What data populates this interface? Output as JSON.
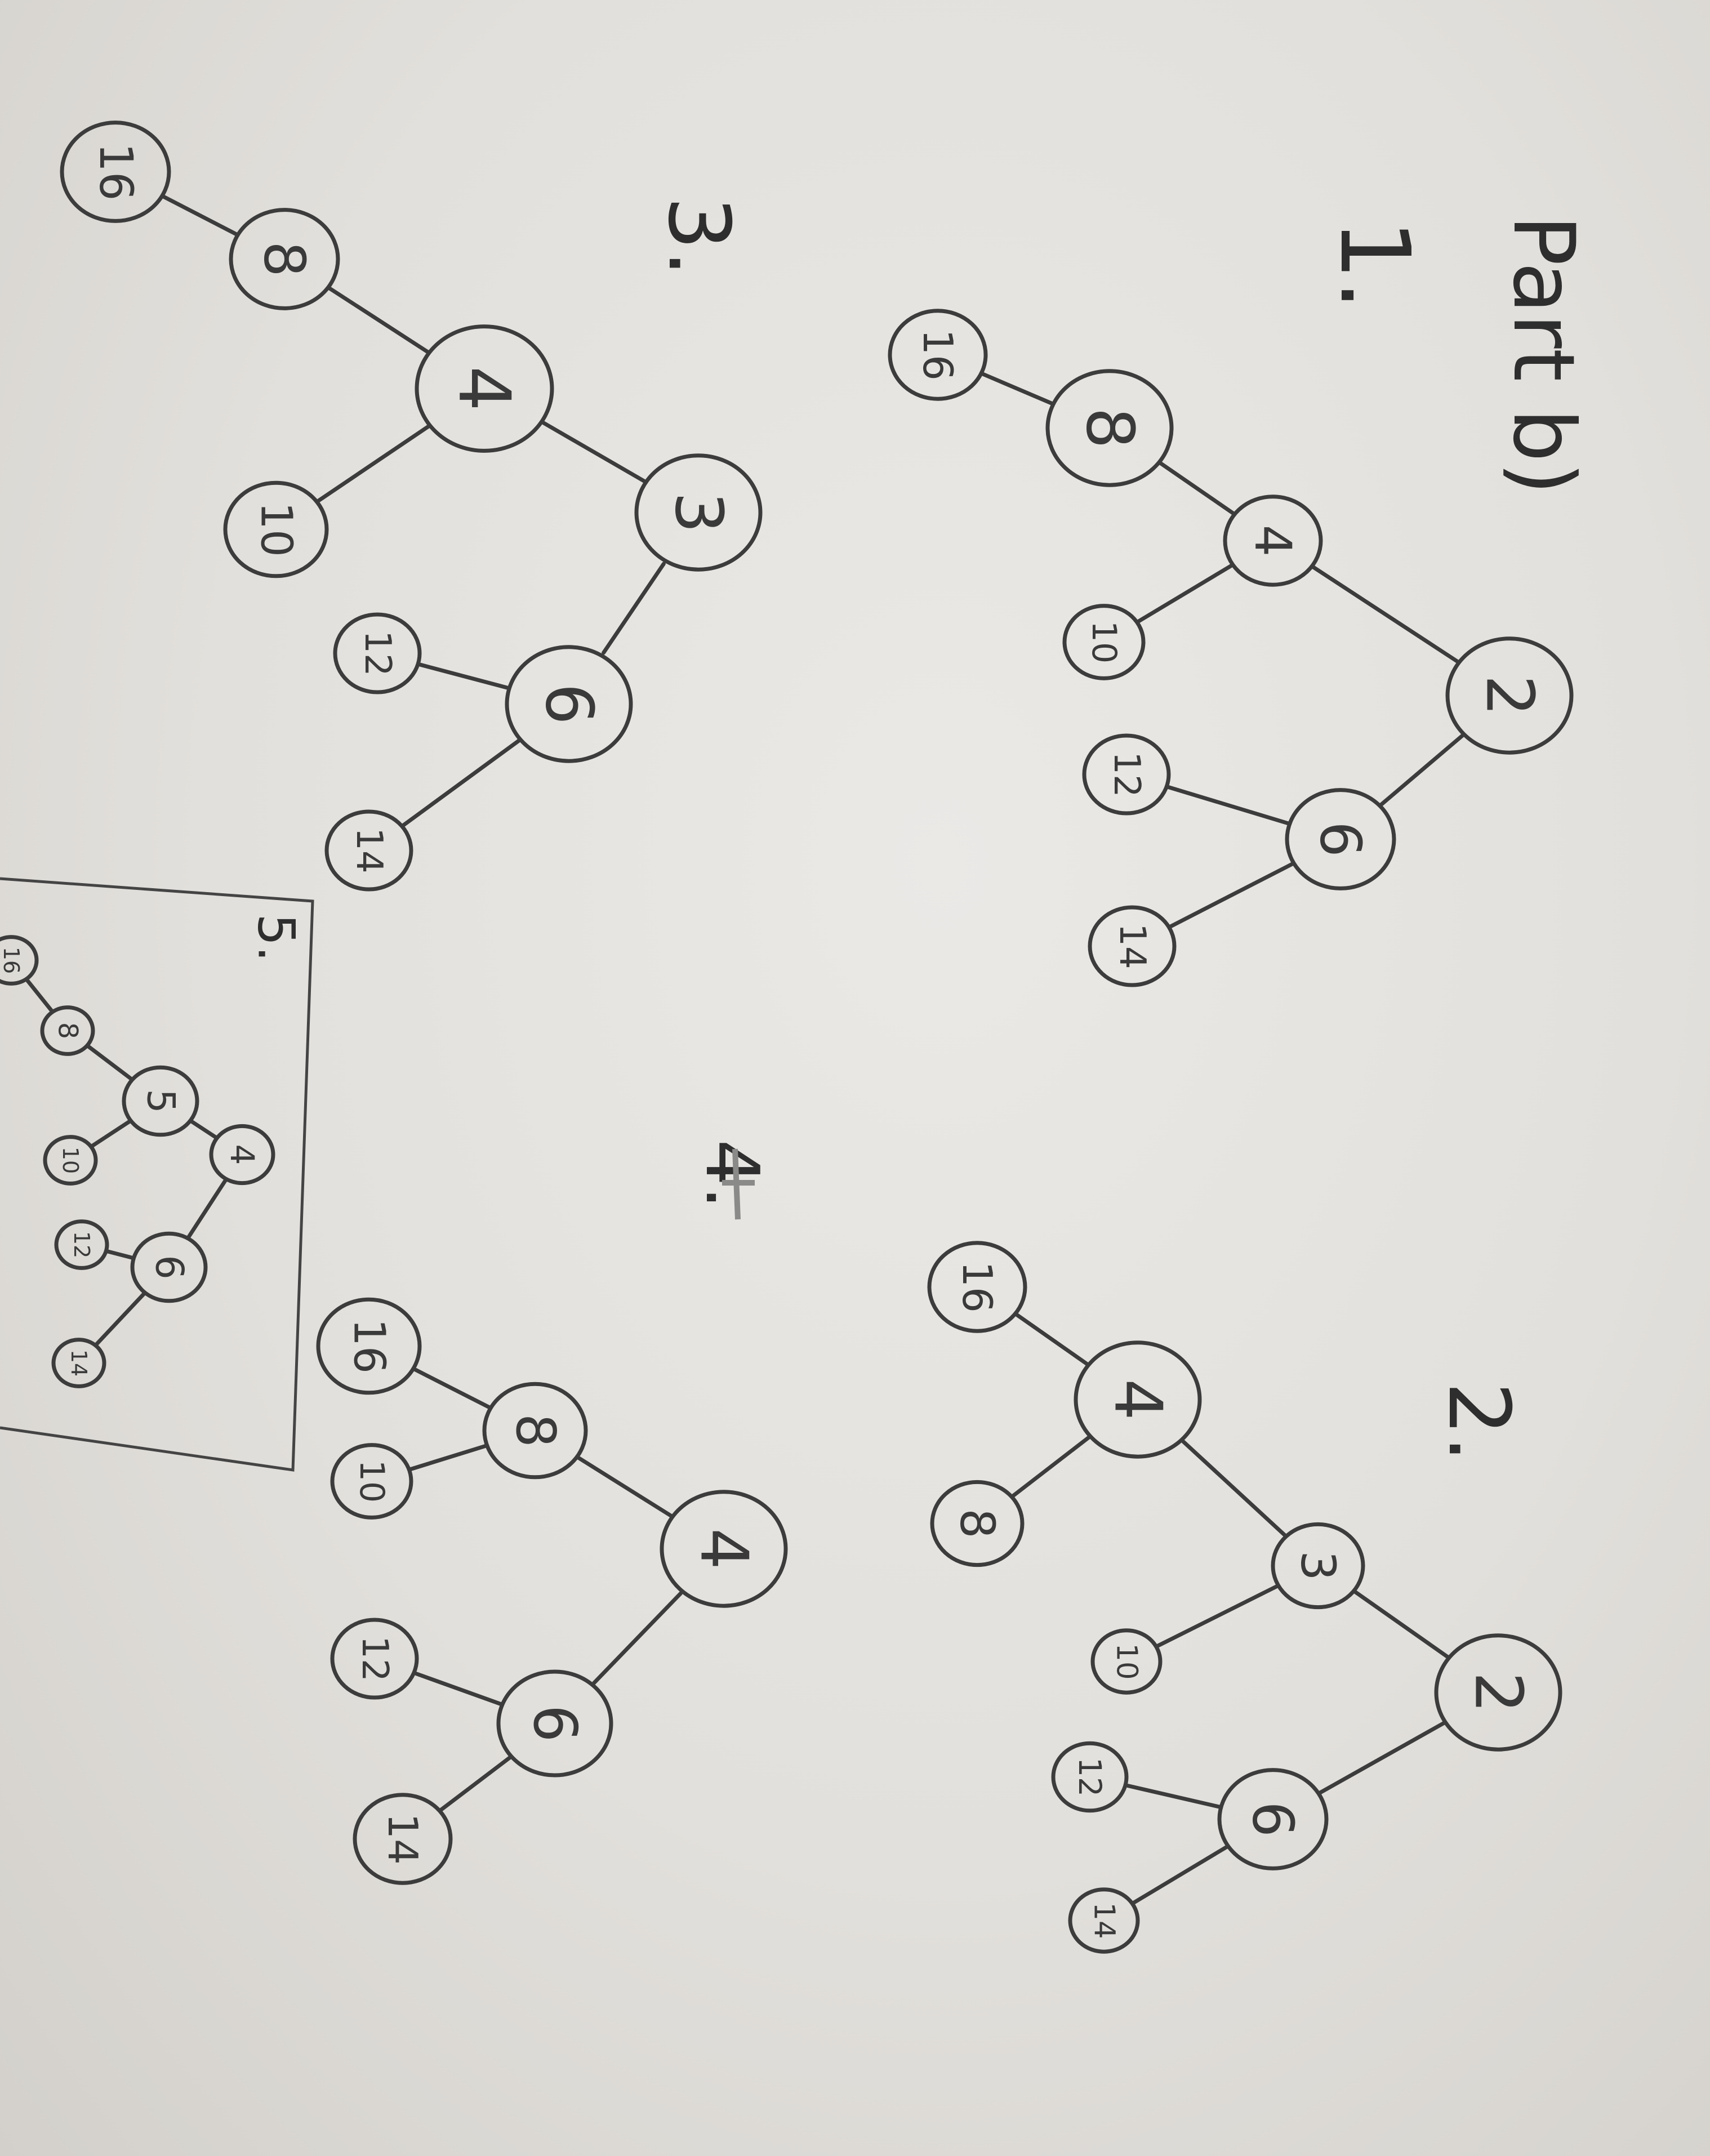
{
  "header": {
    "title": "Part b)"
  },
  "labels": {
    "d1": "1.",
    "d2": "2.",
    "d3": "3.",
    "d4": "4.",
    "d5": "5."
  },
  "trees": [
    {
      "id": "d1",
      "nodes": [
        {
          "id": "n2",
          "label": "2"
        },
        {
          "id": "n4",
          "label": "4"
        },
        {
          "id": "n6",
          "label": "6"
        },
        {
          "id": "n8",
          "label": "8"
        },
        {
          "id": "n10",
          "label": "10"
        },
        {
          "id": "n12",
          "label": "12"
        },
        {
          "id": "n14",
          "label": "14"
        },
        {
          "id": "n16",
          "label": "16"
        }
      ],
      "edges": [
        [
          "n2",
          "n4"
        ],
        [
          "n2",
          "n6"
        ],
        [
          "n4",
          "n8"
        ],
        [
          "n4",
          "n10"
        ],
        [
          "n6",
          "n12"
        ],
        [
          "n6",
          "n14"
        ],
        [
          "n8",
          "n16"
        ]
      ]
    },
    {
      "id": "d2",
      "nodes": [
        {
          "id": "n2",
          "label": "2"
        },
        {
          "id": "n3",
          "label": "3"
        },
        {
          "id": "n6",
          "label": "6"
        },
        {
          "id": "n4",
          "label": "4"
        },
        {
          "id": "n10",
          "label": "10"
        },
        {
          "id": "n12",
          "label": "12"
        },
        {
          "id": "n14",
          "label": "14"
        },
        {
          "id": "n8",
          "label": "8"
        },
        {
          "id": "n16",
          "label": "16"
        }
      ],
      "edges": [
        [
          "n2",
          "n3"
        ],
        [
          "n2",
          "n6"
        ],
        [
          "n3",
          "n4"
        ],
        [
          "n3",
          "n10"
        ],
        [
          "n6",
          "n12"
        ],
        [
          "n6",
          "n14"
        ],
        [
          "n4",
          "n16"
        ],
        [
          "n4",
          "n8"
        ]
      ]
    },
    {
      "id": "d3",
      "nodes": [
        {
          "id": "n3",
          "label": "3"
        },
        {
          "id": "n4",
          "label": "4"
        },
        {
          "id": "n6",
          "label": "6"
        },
        {
          "id": "n8",
          "label": "8"
        },
        {
          "id": "n10",
          "label": "10"
        },
        {
          "id": "n12",
          "label": "12"
        },
        {
          "id": "n14",
          "label": "14"
        },
        {
          "id": "n16",
          "label": "16"
        }
      ],
      "edges": [
        [
          "n3",
          "n4"
        ],
        [
          "n3",
          "n6"
        ],
        [
          "n4",
          "n8"
        ],
        [
          "n4",
          "n10"
        ],
        [
          "n6",
          "n12"
        ],
        [
          "n6",
          "n14"
        ],
        [
          "n8",
          "n16"
        ]
      ]
    },
    {
      "id": "d4",
      "nodes": [
        {
          "id": "n4",
          "label": "4"
        },
        {
          "id": "n8",
          "label": "8"
        },
        {
          "id": "n6",
          "label": "6"
        },
        {
          "id": "n16",
          "label": "16"
        },
        {
          "id": "n10",
          "label": "10"
        },
        {
          "id": "n12",
          "label": "12"
        },
        {
          "id": "n14",
          "label": "14"
        }
      ],
      "edges": [
        [
          "n4",
          "n8"
        ],
        [
          "n4",
          "n6"
        ],
        [
          "n8",
          "n16"
        ],
        [
          "n8",
          "n10"
        ],
        [
          "n6",
          "n12"
        ],
        [
          "n6",
          "n14"
        ]
      ]
    },
    {
      "id": "d5",
      "nodes": [
        {
          "id": "n4",
          "label": "4"
        },
        {
          "id": "n5",
          "label": "5"
        },
        {
          "id": "n6",
          "label": "6"
        },
        {
          "id": "n8",
          "label": "8"
        },
        {
          "id": "n10",
          "label": "10"
        },
        {
          "id": "n12",
          "label": "12"
        },
        {
          "id": "n14",
          "label": "14"
        },
        {
          "id": "n16",
          "label": "16"
        }
      ],
      "edges": [
        [
          "n4",
          "n5"
        ],
        [
          "n4",
          "n6"
        ],
        [
          "n5",
          "n8"
        ],
        [
          "n5",
          "n10"
        ],
        [
          "n6",
          "n12"
        ],
        [
          "n6",
          "n14"
        ],
        [
          "n8",
          "n16"
        ]
      ]
    }
  ]
}
